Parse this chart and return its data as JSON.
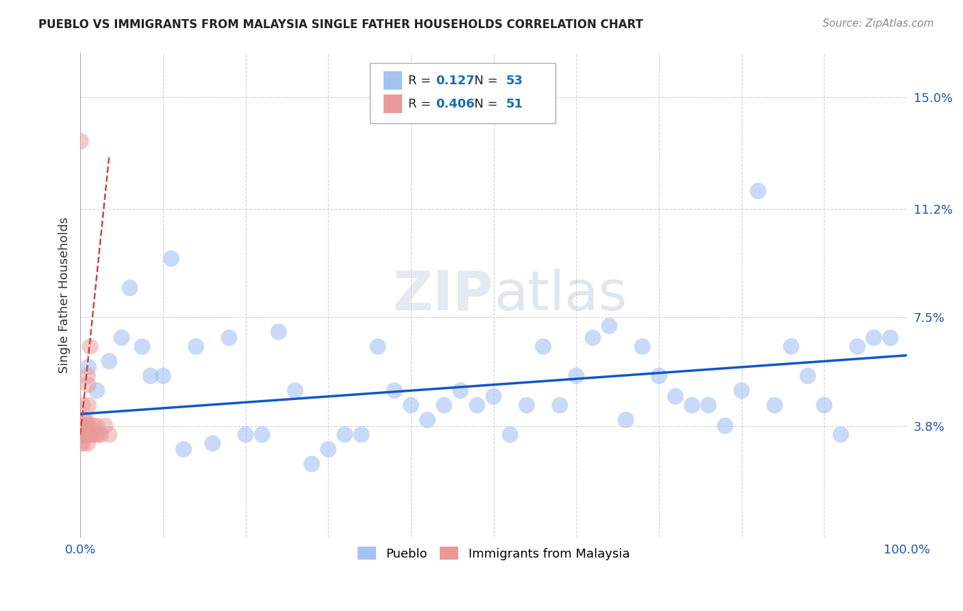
{
  "title": "PUEBLO VS IMMIGRANTS FROM MALAYSIA SINGLE FATHER HOUSEHOLDS CORRELATION CHART",
  "source": "Source: ZipAtlas.com",
  "ylabel": "Single Father Households",
  "watermark": "ZIPatlas",
  "xlim": [
    0,
    100
  ],
  "ylim": [
    0,
    16.5
  ],
  "yticks": [
    3.8,
    7.5,
    11.2,
    15.0
  ],
  "ytick_labels": [
    "3.8%",
    "7.5%",
    "11.2%",
    "15.0%"
  ],
  "blue_R": 0.127,
  "blue_N": 53,
  "pink_R": 0.406,
  "pink_N": 51,
  "blue_color": "#a4c2f4",
  "pink_color": "#ea9999",
  "trendline_blue": "#1155cc",
  "trendline_pink": "#cc4444",
  "blue_x": [
    1.0,
    2.0,
    3.5,
    5.0,
    6.0,
    7.5,
    8.5,
    10.0,
    11.0,
    12.5,
    14.0,
    16.0,
    18.0,
    20.0,
    22.0,
    24.0,
    26.0,
    28.0,
    30.0,
    32.0,
    34.0,
    36.0,
    38.0,
    40.0,
    42.0,
    44.0,
    46.0,
    48.0,
    50.0,
    52.0,
    54.0,
    56.0,
    58.0,
    60.0,
    62.0,
    64.0,
    66.0,
    68.0,
    70.0,
    72.0,
    74.0,
    76.0,
    78.0,
    80.0,
    82.0,
    84.0,
    86.0,
    88.0,
    90.0,
    92.0,
    94.0,
    96.0,
    98.0
  ],
  "blue_y": [
    5.8,
    5.0,
    6.0,
    6.8,
    8.5,
    6.5,
    5.5,
    5.5,
    9.5,
    3.0,
    6.5,
    3.2,
    6.8,
    3.5,
    3.5,
    7.0,
    5.0,
    2.5,
    3.0,
    3.5,
    3.5,
    6.5,
    5.0,
    4.5,
    4.0,
    4.5,
    5.0,
    4.5,
    4.8,
    3.5,
    4.5,
    6.5,
    4.5,
    5.5,
    6.8,
    7.2,
    4.0,
    6.5,
    5.5,
    4.8,
    4.5,
    4.5,
    3.8,
    5.0,
    11.8,
    4.5,
    6.5,
    5.5,
    4.5,
    3.5,
    6.5,
    6.8,
    6.8
  ],
  "pink_x": [
    0.05,
    0.08,
    0.1,
    0.12,
    0.15,
    0.18,
    0.2,
    0.22,
    0.25,
    0.28,
    0.3,
    0.32,
    0.35,
    0.38,
    0.4,
    0.42,
    0.45,
    0.48,
    0.5,
    0.52,
    0.55,
    0.58,
    0.6,
    0.62,
    0.65,
    0.68,
    0.7,
    0.72,
    0.75,
    0.78,
    0.8,
    0.82,
    0.85,
    0.88,
    0.9,
    0.92,
    0.95,
    0.98,
    1.0,
    1.1,
    1.2,
    1.3,
    1.5,
    1.6,
    1.8,
    2.0,
    2.2,
    2.5,
    3.0,
    3.5,
    0.06
  ],
  "pink_y": [
    3.5,
    3.2,
    3.8,
    3.5,
    3.5,
    3.8,
    3.5,
    3.5,
    3.8,
    3.5,
    4.5,
    3.5,
    3.8,
    3.5,
    3.2,
    3.5,
    4.0,
    3.5,
    3.5,
    3.8,
    3.5,
    3.5,
    3.8,
    3.5,
    3.8,
    3.5,
    4.0,
    3.5,
    3.8,
    3.5,
    3.8,
    3.5,
    3.8,
    3.5,
    5.5,
    3.2,
    5.2,
    3.8,
    4.5,
    3.5,
    6.5,
    3.5,
    3.5,
    3.8,
    3.5,
    3.8,
    3.5,
    3.5,
    3.8,
    3.5,
    13.5
  ],
  "blue_trend_x0": 0,
  "blue_trend_x1": 100,
  "blue_trend_y0": 4.2,
  "blue_trend_y1": 6.2,
  "pink_trend_x0": 0,
  "pink_trend_x1": 3.5,
  "pink_trend_y0": 3.5,
  "pink_trend_y1": 13.0
}
